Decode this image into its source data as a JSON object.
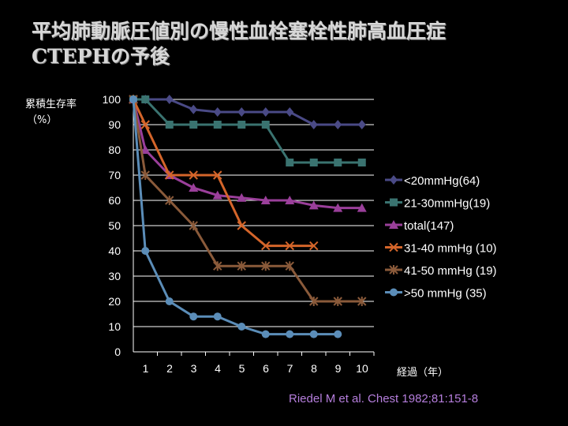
{
  "title": {
    "line1": "平均肺動脈圧値別の慢性血栓塞栓性肺高血圧症",
    "line2": "CTEPHの予後"
  },
  "citation": "Riedel M et al. Chest 1982;81:151-8",
  "chart_data": {
    "type": "line",
    "ylabel_lines": [
      "累積生存率",
      "（%）"
    ],
    "xlabel": "経過（年）",
    "ylim": [
      0,
      100
    ],
    "yticks": [
      0,
      10,
      20,
      30,
      40,
      50,
      60,
      70,
      80,
      90,
      100
    ],
    "xlim": [
      0,
      10
    ],
    "xticks": [
      1,
      2,
      3,
      4,
      5,
      6,
      7,
      8,
      9,
      10
    ],
    "grid": true,
    "legend_position": "right",
    "series": [
      {
        "name": "<20mmHg(64)",
        "color": "#4a4a86",
        "marker": "diamond",
        "x": [
          0,
          0.5,
          1.5,
          2.5,
          3.5,
          4.5,
          5.5,
          6.5,
          7.5,
          8.5,
          9.5
        ],
        "y": [
          100,
          100,
          100,
          96,
          95,
          95,
          95,
          95,
          90,
          90,
          90
        ]
      },
      {
        "name": "21-30mmHg(19)",
        "color": "#3a7370",
        "marker": "square",
        "x": [
          0,
          0.5,
          1.5,
          2.5,
          3.5,
          4.5,
          5.5,
          6.5,
          7.5,
          8.5,
          9.5
        ],
        "y": [
          100,
          100,
          90,
          90,
          90,
          90,
          90,
          75,
          75,
          75,
          75
        ]
      },
      {
        "name": "total(147)",
        "color": "#9a3f9a",
        "marker": "triangle",
        "x": [
          0,
          0.5,
          1.5,
          2.5,
          3.5,
          4.5,
          5.5,
          6.5,
          7.5,
          8.5,
          9.5
        ],
        "y": [
          100,
          80,
          70,
          65,
          62,
          61,
          60,
          60,
          58,
          57,
          57
        ]
      },
      {
        "name": "31-40 mmHg (10)",
        "color": "#d4652a",
        "marker": "x",
        "x": [
          0,
          0.5,
          1.5,
          2.5,
          3.5,
          4.5,
          5.5,
          6.5,
          7.5
        ],
        "y": [
          100,
          90,
          70,
          70,
          70,
          50,
          42,
          42,
          42
        ]
      },
      {
        "name": "41-50 mmHg (19)",
        "color": "#8a5a3a",
        "marker": "star",
        "x": [
          0,
          0.5,
          1.5,
          2.5,
          3.5,
          4.5,
          5.5,
          6.5,
          7.5,
          8.5,
          9.5
        ],
        "y": [
          100,
          70,
          60,
          50,
          34,
          34,
          34,
          34,
          20,
          20,
          20
        ]
      },
      {
        "name": ">50 mmHg (35)",
        "color": "#5b8db8",
        "marker": "circle",
        "x": [
          0,
          0.5,
          1.5,
          2.5,
          3.5,
          4.5,
          5.5,
          6.5,
          7.5,
          8.5
        ],
        "y": [
          100,
          40,
          20,
          14,
          14,
          10,
          7,
          7,
          7,
          7
        ]
      }
    ]
  }
}
